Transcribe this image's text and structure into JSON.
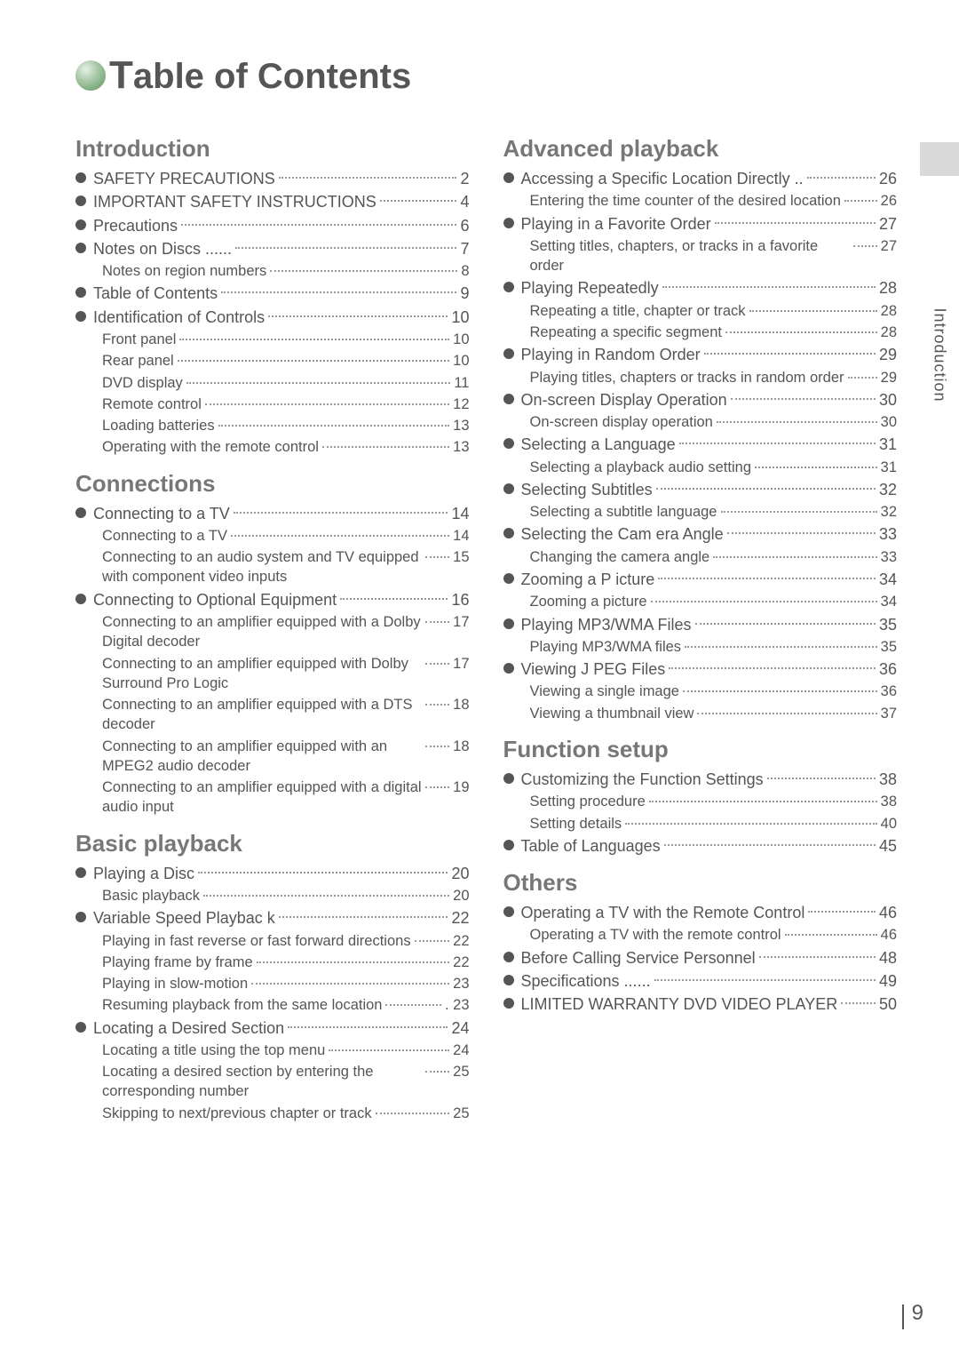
{
  "title_prefix": "T",
  "title_rest": "able of Contents",
  "side_tab": "Introduction",
  "page_number": "9",
  "left": {
    "sections": [
      {
        "heading": "Introduction",
        "items": [
          {
            "t": "top",
            "label": "SAFETY PRECAUTIONS",
            "page": "2"
          },
          {
            "t": "top",
            "label": "IMPORTANT SAFETY INSTRUCTIONS",
            "page": "4"
          },
          {
            "t": "top",
            "label": "Precautions",
            "page": "6"
          },
          {
            "t": "top",
            "label": "Notes on Discs ......",
            "page": "7"
          },
          {
            "t": "sub",
            "label": "Notes on region numbers",
            "page": "8"
          },
          {
            "t": "top",
            "label": "Table of Contents",
            "page": "9"
          },
          {
            "t": "top",
            "label": "Identification of Controls",
            "page": "10"
          },
          {
            "t": "sub",
            "label": "Front panel",
            "page": "10"
          },
          {
            "t": "sub",
            "label": "Rear panel",
            "page": "10"
          },
          {
            "t": "sub",
            "label": "DVD display",
            "page": "11"
          },
          {
            "t": "sub",
            "label": "Remote control",
            "page": "12"
          },
          {
            "t": "sub",
            "label": "Loading batteries",
            "page": "13"
          },
          {
            "t": "sub",
            "label": "Operating with the remote control",
            "page": "13"
          }
        ]
      },
      {
        "heading": "Connections",
        "items": [
          {
            "t": "top",
            "label": "Connecting to a TV",
            "page": "14"
          },
          {
            "t": "sub",
            "label": "Connecting to a TV",
            "page": "14"
          },
          {
            "t": "sub",
            "label": "Connecting to an audio system and TV equipped with component video inputs",
            "page": "15"
          },
          {
            "t": "top",
            "label": "Connecting to Optional   Equipment",
            "page": "16"
          },
          {
            "t": "sub",
            "label": "Connecting to an amplifier equipped with a Dolby Digital decoder",
            "page": "17"
          },
          {
            "t": "sub",
            "label": "Connecting to an amplifier equipped with Dolby Surround Pro Logic",
            "page": "17"
          },
          {
            "t": "sub",
            "label": "Connecting to an amplifier equipped with a DTS decoder",
            "page": "18"
          },
          {
            "t": "sub",
            "label": "Connecting to an amplifier equipped with an MPEG2 audio decoder",
            "page": "18"
          },
          {
            "t": "sub",
            "label": "Connecting to an amplifier equipped with a digital audio input",
            "page": "19"
          }
        ]
      },
      {
        "heading": "Basic playback",
        "items": [
          {
            "t": "top",
            "label": "Playing a Disc",
            "page": "20"
          },
          {
            "t": "sub",
            "label": "Basic playback",
            "page": "20"
          },
          {
            "t": "top",
            "label": "Variable Speed  Playbac k",
            "page": "22"
          },
          {
            "t": "sub",
            "label": "Playing in fast reverse or fast forward directions",
            "page": "22"
          },
          {
            "t": "sub",
            "label": "Playing frame by frame",
            "page": "22"
          },
          {
            "t": "sub",
            "label": "Playing in slow-motion",
            "page": "23"
          },
          {
            "t": "sub",
            "label": "Resuming playback from the same location",
            "page": ". 23"
          },
          {
            "t": "top",
            "label": "Locating a Desired   Section",
            "page": "24"
          },
          {
            "t": "sub",
            "label": "Locating a title using the top menu",
            "page": "24"
          },
          {
            "t": "sub",
            "label": "Locating a desired section by entering the corresponding number",
            "page": "25"
          },
          {
            "t": "sub",
            "label": "Skipping to next/previous chapter or track",
            "page": "25"
          }
        ]
      }
    ]
  },
  "right": {
    "sections": [
      {
        "heading": "Advanced playback",
        "items": [
          {
            "t": "top",
            "label": "Accessing a Specific Location Directly ..",
            "page": "26"
          },
          {
            "t": "sub",
            "label": "Entering the time counter of the desired location",
            "page": "26"
          },
          {
            "t": "top",
            "label": "Playing in a Favorite   Order",
            "page": "27"
          },
          {
            "t": "sub",
            "label": "Setting titles, chapters, or tracks in a favorite order",
            "page": "27"
          },
          {
            "t": "top",
            "label": "Playing Repeatedly",
            "page": "28"
          },
          {
            "t": "sub",
            "label": "Repeating a title, chapter or track",
            "page": "28"
          },
          {
            "t": "sub",
            "label": "Repeating a specific segment",
            "page": "28"
          },
          {
            "t": "top",
            "label": "Playing in Random   Order",
            "page": "29"
          },
          {
            "t": "sub",
            "label": "Playing titles, chapters or tracks in random order",
            "page": "29"
          },
          {
            "t": "top",
            "label": "On-screen Display Operation",
            "page": "30"
          },
          {
            "t": "sub",
            "label": "On-screen display operation",
            "page": "30"
          },
          {
            "t": "top",
            "label": "Selecting a Language",
            "page": "31"
          },
          {
            "t": "sub",
            "label": "Selecting a playback audio setting",
            "page": "31"
          },
          {
            "t": "top",
            "label": "Selecting Subtitles",
            "page": "32"
          },
          {
            "t": "sub",
            "label": "Selecting a subtitle language",
            "page": "32"
          },
          {
            "t": "top",
            "label": "Selecting the Cam  era Angle",
            "page": "33"
          },
          {
            "t": "sub",
            "label": "Changing the camera angle",
            "page": "33"
          },
          {
            "t": "top",
            "label": "Zooming a P  icture",
            "page": "34"
          },
          {
            "t": "sub",
            "label": "Zooming a picture",
            "page": "34"
          },
          {
            "t": "top",
            "label": "Playing MP3/WMA Files",
            "page": "35"
          },
          {
            "t": "sub",
            "label": "Playing MP3/WMA files",
            "page": "35"
          },
          {
            "t": "top",
            "label": "Viewing J PEG Files",
            "page": "36"
          },
          {
            "t": "sub",
            "label": "Viewing a single image",
            "page": "36"
          },
          {
            "t": "sub",
            "label": "Viewing a thumbnail view",
            "page": "37"
          }
        ]
      },
      {
        "heading": "Function setup",
        "items": [
          {
            "t": "top",
            "label": "Customizing the   Function Settings",
            "page": "38"
          },
          {
            "t": "sub",
            "label": "Setting procedure",
            "page": "38"
          },
          {
            "t": "sub",
            "label": "Setting details",
            "page": "40"
          },
          {
            "t": "top",
            "label": "Table of Languages",
            "page": "45"
          }
        ]
      },
      {
        "heading": "Others",
        "items": [
          {
            "t": "top",
            "label": "Operating a TV with the Remote Control",
            "page": "46",
            "long": true
          },
          {
            "t": "sub",
            "label": "Operating a TV with the remote control",
            "page": "46"
          },
          {
            "t": "top",
            "label": "Before Calling Service   Personnel",
            "page": "48"
          },
          {
            "t": "top",
            "label": "Specifications ......",
            "page": "49"
          },
          {
            "t": "top",
            "label": "LIMITED WARRANTY DVD VIDEO PLAYER",
            "page": "50",
            "long": true
          }
        ]
      }
    ]
  }
}
